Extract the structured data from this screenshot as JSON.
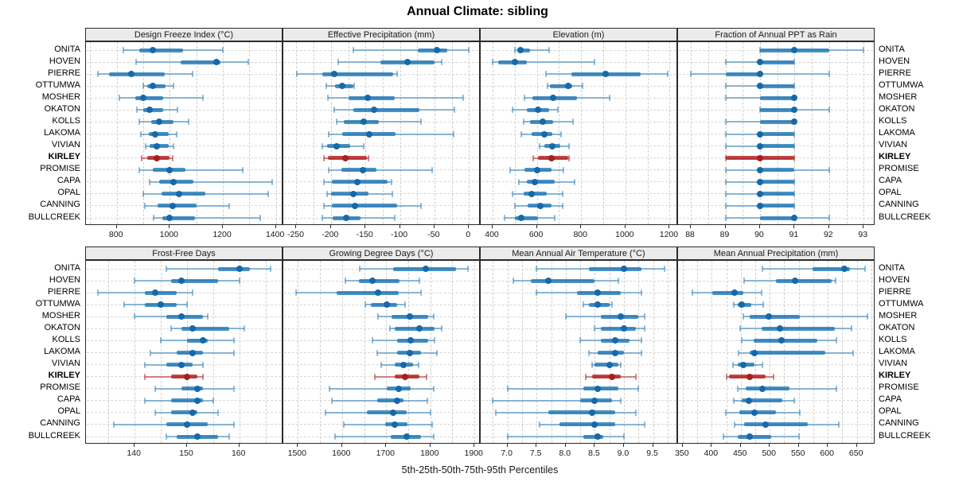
{
  "title": "Annual Climate: sibling",
  "xlabel": "5th-25th-50th-75th-95th Percentiles",
  "colors": {
    "series_blue_whisker": "rgba(31,119,180,0.50)",
    "series_blue_bar": "rgba(31,119,180,0.80)",
    "series_blue_dot": "#1669A9",
    "highlight_red_whisker": "rgba(178,34,34,0.55)",
    "highlight_red_bar": "rgba(178,34,34,0.82)",
    "highlight_red_dot": "#A32121",
    "grid_line": "#cfcfcf",
    "strip_bg": "#ebebeb",
    "panel_border": "#2b2b2b"
  },
  "chart_data": {
    "type": "dotplot-percentiles",
    "percentile_labels": [
      "5th",
      "25th",
      "50th",
      "75th",
      "95th"
    ],
    "stations": [
      "ONITA",
      "HOVEN",
      "PIERRE",
      "OTTUMWA",
      "MOSHER",
      "OKATON",
      "KOLLS",
      "LAKOMA",
      "VIVIAN",
      "KIRLEY",
      "PROMISE",
      "CAPA",
      "OPAL",
      "CANNING",
      "BULLCREEK"
    ],
    "highlight_station": "KIRLEY",
    "layout": {
      "rows": 2,
      "cols": 4,
      "legend": "none",
      "grid": "dashed",
      "station_labels": "both-sides"
    },
    "panels": [
      {
        "title": "Design Freeze Index (°C)",
        "domain": [
          684,
          1428
        ],
        "tick_values": [
          800,
          1000,
          1200,
          1400
        ],
        "tick_labels": [
          "800",
          "1000",
          "1200",
          "1400"
        ],
        "grid_values": [
          700,
          800,
          900,
          1000,
          1100,
          1200,
          1300,
          1400
        ],
        "values": [
          [
            825,
            885,
            935,
            1050,
            1200
          ],
          [
            873,
            1040,
            1175,
            1190,
            1295
          ],
          [
            730,
            770,
            855,
            980,
            1085
          ],
          [
            900,
            915,
            935,
            985,
            1015
          ],
          [
            810,
            870,
            900,
            975,
            1125
          ],
          [
            875,
            900,
            925,
            975,
            1030
          ],
          [
            885,
            930,
            960,
            1015,
            1070
          ],
          [
            890,
            920,
            945,
            995,
            1025
          ],
          [
            910,
            925,
            950,
            995,
            1015
          ],
          [
            895,
            915,
            950,
            1000,
            1010
          ],
          [
            885,
            935,
            1000,
            1060,
            1275
          ],
          [
            925,
            960,
            1015,
            1090,
            1385
          ],
          [
            900,
            970,
            1035,
            1135,
            1370
          ],
          [
            905,
            955,
            1010,
            1100,
            1225
          ],
          [
            938,
            973,
            998,
            1095,
            1340
          ]
        ]
      },
      {
        "title": "Effective Precipitation (mm)",
        "domain": [
          -269,
          17
        ],
        "tick_values": [
          -250,
          -200,
          -150,
          -100,
          -50,
          0
        ],
        "tick_labels": [
          "-250",
          "-200",
          "-150",
          "-100",
          "-50",
          "0"
        ],
        "grid_values": [
          -250,
          -225,
          -200,
          -175,
          -150,
          -125,
          -100,
          -75,
          -50,
          -25,
          0
        ],
        "values": [
          [
            -167,
            -74,
            -46,
            -31,
            0
          ],
          [
            -190,
            -128,
            -89,
            -50,
            -40
          ],
          [
            -249,
            -212,
            -195,
            -110,
            -104
          ],
          [
            -207,
            -194,
            -184,
            -168,
            -166
          ],
          [
            -204,
            -174,
            -147,
            -108,
            -8
          ],
          [
            -195,
            -168,
            -138,
            -72,
            -21
          ],
          [
            -192,
            -181,
            -153,
            -131,
            -70
          ],
          [
            -203,
            -184,
            -145,
            -106,
            -22
          ],
          [
            -212,
            -205,
            -192,
            -172,
            -152
          ],
          [
            -210,
            -204,
            -179,
            -148,
            -146
          ],
          [
            -203,
            -185,
            -154,
            -134,
            -53
          ],
          [
            -210,
            -199,
            -162,
            -118,
            -112
          ],
          [
            -206,
            -200,
            -168,
            -146,
            -111
          ],
          [
            -210,
            -199,
            -165,
            -104,
            -70
          ],
          [
            -212,
            -198,
            -178,
            -157,
            -108
          ]
        ]
      },
      {
        "title": "Elevation (m)",
        "domain": [
          346,
          1238
        ],
        "tick_values": [
          400,
          600,
          800,
          1000,
          1200
        ],
        "tick_labels": [
          "400",
          "600",
          "800",
          "1000",
          "1200"
        ],
        "grid_values": [
          400,
          500,
          600,
          700,
          800,
          900,
          1000,
          1100,
          1200
        ],
        "values": [
          [
            500,
            510,
            525,
            570,
            655
          ],
          [
            400,
            425,
            500,
            555,
            860
          ],
          [
            640,
            755,
            910,
            1070,
            1190
          ],
          [
            648,
            660,
            740,
            760,
            805
          ],
          [
            545,
            580,
            675,
            780,
            930
          ],
          [
            490,
            555,
            605,
            655,
            695
          ],
          [
            540,
            570,
            625,
            675,
            765
          ],
          [
            530,
            575,
            635,
            670,
            710
          ],
          [
            612,
            634,
            670,
            705,
            745
          ],
          [
            585,
            605,
            665,
            740,
            745
          ],
          [
            480,
            545,
            600,
            665,
            720
          ],
          [
            520,
            555,
            590,
            680,
            770
          ],
          [
            490,
            540,
            575,
            645,
            715
          ],
          [
            500,
            560,
            615,
            665,
            715
          ],
          [
            455,
            500,
            530,
            605,
            680
          ]
        ]
      },
      {
        "title": "Fraction of Annual PPT as Rain",
        "domain": [
          87.63,
          93.34
        ],
        "tick_values": [
          88,
          89,
          90,
          91,
          92,
          93
        ],
        "tick_labels": [
          "88",
          "89",
          "90",
          "91",
          "92",
          "93"
        ],
        "grid_values": [
          88,
          88.5,
          89,
          89.5,
          90,
          90.5,
          91,
          91.5,
          92,
          92.5,
          93
        ],
        "values": [
          [
            90,
            90,
            91,
            92,
            93
          ],
          [
            89,
            90,
            90,
            91,
            91
          ],
          [
            88,
            89,
            90,
            90,
            92
          ],
          [
            89,
            90,
            90,
            91,
            91
          ],
          [
            89,
            90,
            91,
            91,
            91
          ],
          [
            90,
            90,
            91,
            91,
            92
          ],
          [
            89,
            90,
            91,
            91,
            91
          ],
          [
            89,
            90,
            90,
            91,
            91
          ],
          [
            89,
            90,
            90,
            91,
            91
          ],
          [
            89,
            89,
            90,
            91,
            91
          ],
          [
            89,
            90,
            90,
            91,
            92
          ],
          [
            89,
            90,
            90,
            91,
            91
          ],
          [
            89,
            90,
            90,
            91,
            91
          ],
          [
            89,
            90,
            90,
            91,
            91
          ],
          [
            89,
            90,
            91,
            91,
            92
          ]
        ]
      },
      {
        "title": "Frost-Free Days",
        "domain": [
          130.7,
          168.4
        ],
        "tick_values": [
          140,
          150,
          160
        ],
        "tick_labels": [
          "140",
          "150",
          "160"
        ],
        "grid_values": [
          135,
          140,
          145,
          150,
          155,
          160,
          165
        ],
        "values": [
          [
            146,
            156,
            160,
            162,
            166
          ],
          [
            140,
            147,
            149,
            156,
            160
          ],
          [
            133,
            142,
            144,
            148,
            151
          ],
          [
            138,
            142,
            145,
            148,
            150
          ],
          [
            140,
            146,
            149,
            153,
            154
          ],
          [
            147,
            149,
            151,
            158,
            161
          ],
          [
            145,
            150,
            153,
            154,
            159
          ],
          [
            143,
            148,
            151,
            153,
            159
          ],
          [
            142,
            146,
            149,
            151,
            153
          ],
          [
            142,
            147,
            150,
            152,
            153
          ],
          [
            144,
            149,
            152,
            153,
            159
          ],
          [
            142,
            147,
            152,
            153,
            155
          ],
          [
            144,
            147,
            151,
            152,
            156
          ],
          [
            136,
            146,
            150,
            154,
            159
          ],
          [
            146,
            148,
            152,
            156,
            158
          ]
        ]
      },
      {
        "title": "Growing Degree Days (°C)",
        "domain": [
          1467,
          1914
        ],
        "tick_values": [
          1500,
          1600,
          1700,
          1800,
          1900
        ],
        "tick_labels": [
          "1500",
          "1600",
          "1700",
          "1800",
          "1900"
        ],
        "grid_values": [
          1500,
          1550,
          1600,
          1650,
          1700,
          1750,
          1800,
          1850,
          1900
        ],
        "values": [
          [
            1640,
            1715,
            1790,
            1858,
            1886
          ],
          [
            1607,
            1638,
            1669,
            1731,
            1775
          ],
          [
            1495,
            1587,
            1682,
            1728,
            1779
          ],
          [
            1653,
            1665,
            1701,
            1725,
            1743
          ],
          [
            1682,
            1712,
            1754,
            1795,
            1807
          ],
          [
            1709,
            1719,
            1775,
            1810,
            1825
          ],
          [
            1668,
            1725,
            1755,
            1795,
            1810
          ],
          [
            1680,
            1725,
            1754,
            1779,
            1814
          ],
          [
            1689,
            1719,
            1740,
            1761,
            1773
          ],
          [
            1674,
            1719,
            1743,
            1776,
            1791
          ],
          [
            1572,
            1701,
            1728,
            1755,
            1808
          ],
          [
            1577,
            1680,
            1724,
            1740,
            1794
          ],
          [
            1563,
            1656,
            1716,
            1746,
            1800
          ],
          [
            1604,
            1698,
            1719,
            1749,
            1804
          ],
          [
            1584,
            1710,
            1746,
            1779,
            1807
          ]
        ]
      },
      {
        "title": "Mean Annual Air Temperature (°C)",
        "domain": [
          6.54,
          9.93
        ],
        "tick_values": [
          7.0,
          7.5,
          8.0,
          8.5,
          9.0,
          9.5
        ],
        "tick_labels": [
          "7.0",
          "7.5",
          "8.0",
          "8.5",
          "9.0",
          "9.5"
        ],
        "grid_values": [
          6.75,
          7.0,
          7.25,
          7.5,
          7.75,
          8.0,
          8.25,
          8.5,
          8.75,
          9.0,
          9.25,
          9.5,
          9.75
        ],
        "values": [
          [
            7.5,
            8.4,
            9.0,
            9.3,
            9.7
          ],
          [
            7.1,
            7.4,
            7.7,
            8.5,
            8.9
          ],
          [
            7.5,
            8.2,
            8.55,
            8.95,
            9.3
          ],
          [
            8.3,
            8.4,
            8.55,
            8.75,
            8.8
          ],
          [
            8.0,
            8.6,
            8.95,
            9.25,
            9.35
          ],
          [
            8.5,
            8.6,
            9.0,
            9.2,
            9.35
          ],
          [
            8.25,
            8.6,
            8.85,
            9.1,
            9.3
          ],
          [
            8.4,
            8.55,
            8.85,
            9.0,
            9.3
          ],
          [
            8.45,
            8.5,
            8.75,
            8.9,
            8.95
          ],
          [
            8.35,
            8.45,
            8.8,
            8.95,
            9.2
          ],
          [
            7.0,
            8.3,
            8.55,
            8.9,
            9.25
          ],
          [
            6.75,
            8.25,
            8.5,
            8.8,
            8.95
          ],
          [
            6.8,
            7.7,
            8.45,
            8.85,
            9.2
          ],
          [
            7.55,
            7.9,
            8.5,
            8.85,
            9.35
          ],
          [
            7.0,
            8.3,
            8.55,
            8.65,
            9.0
          ]
        ]
      },
      {
        "title": "Mean Annual Precipitation (mm)",
        "domain": [
          342,
          682
        ],
        "tick_values": [
          350,
          400,
          450,
          500,
          550,
          600,
          650
        ],
        "tick_labels": [
          "350",
          "400",
          "450",
          "500",
          "550",
          "600",
          "650"
        ],
        "grid_values": [
          350,
          375,
          400,
          425,
          450,
          475,
          500,
          525,
          550,
          575,
          600,
          625,
          650,
          675
        ],
        "values": [
          [
            487,
            574,
            629,
            638,
            664
          ],
          [
            456,
            511,
            544,
            607,
            613
          ],
          [
            367,
            401,
            440,
            454,
            486
          ],
          [
            438,
            445,
            452,
            468,
            489
          ],
          [
            455,
            465,
            498,
            552,
            668
          ],
          [
            449,
            486,
            518,
            612,
            641
          ],
          [
            452,
            472,
            520,
            582,
            615
          ],
          [
            446,
            465,
            474,
            596,
            644
          ],
          [
            436,
            445,
            454,
            474,
            488
          ],
          [
            425,
            430,
            466,
            493,
            506
          ],
          [
            445,
            458,
            487,
            534,
            615
          ],
          [
            438,
            452,
            464,
            522,
            542
          ],
          [
            424,
            447,
            474,
            511,
            552
          ],
          [
            440,
            456,
            493,
            566,
            619
          ],
          [
            420,
            445,
            466,
            502,
            550
          ]
        ]
      }
    ]
  }
}
